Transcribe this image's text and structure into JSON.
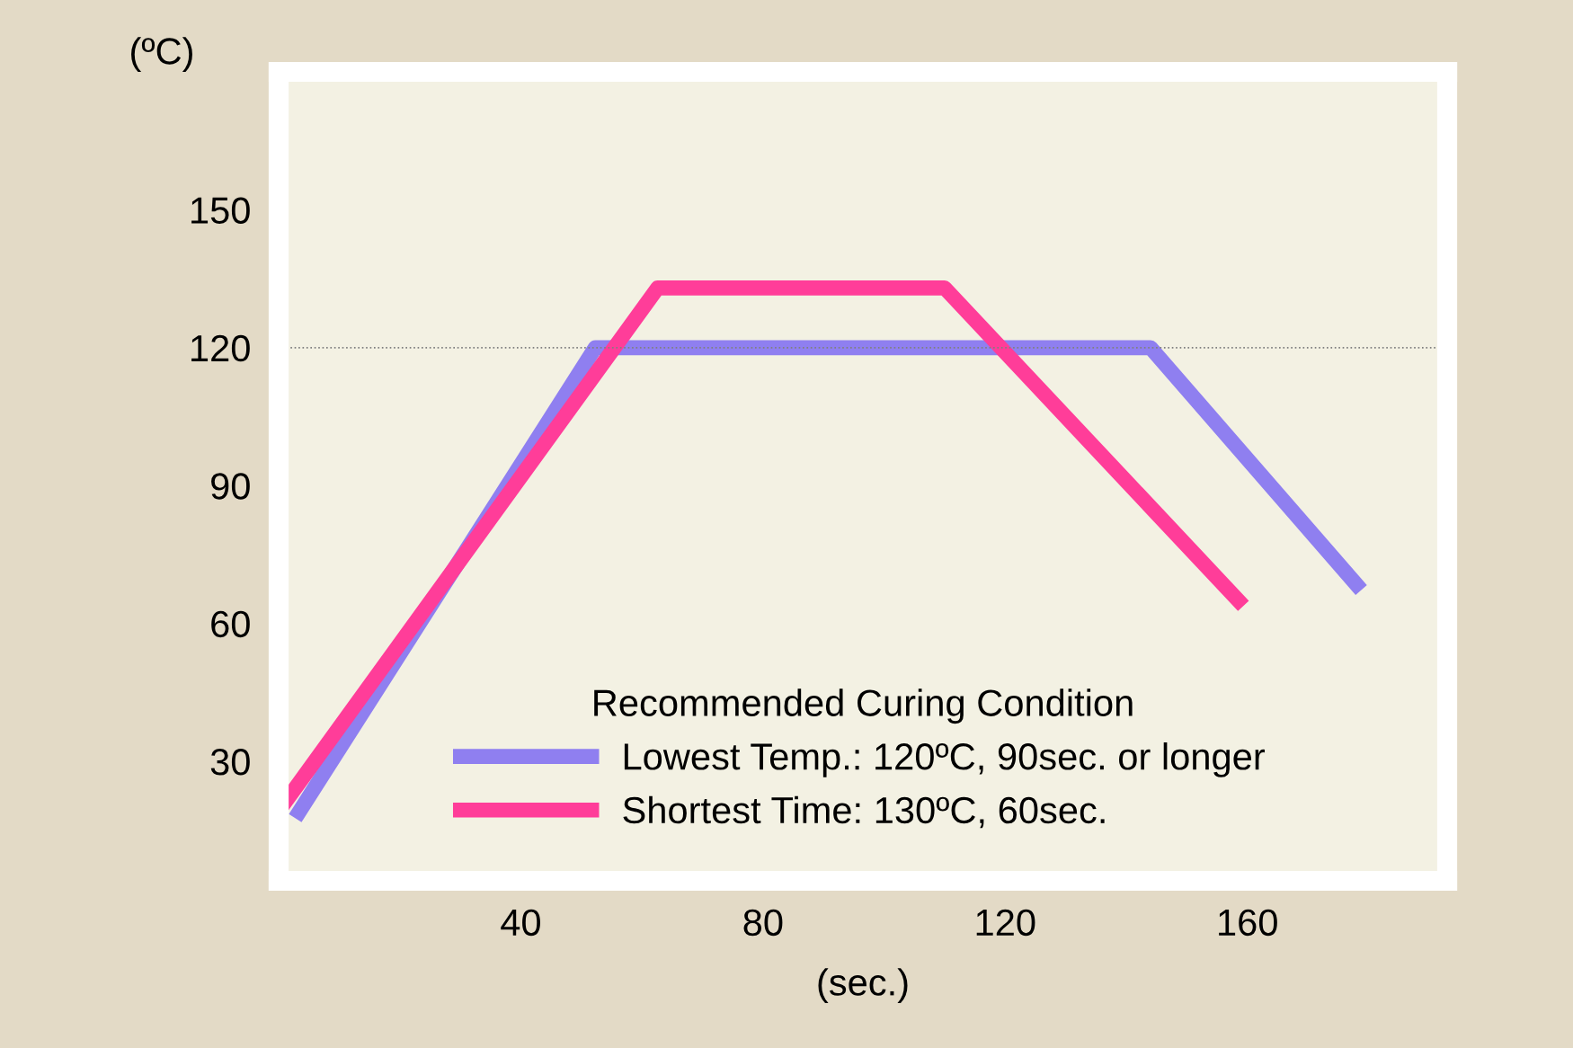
{
  "chart_data": {
    "type": "line",
    "xlabel": "(sec.)",
    "ylabel": "(ºC)",
    "legend_title": "Recommended Curing Condition",
    "legend": "bottom",
    "xlim": [
      0,
      193
    ],
    "ylim": [
      4,
      180
    ],
    "xticks": [
      40,
      80,
      120,
      160
    ],
    "yticks": [
      30,
      60,
      90,
      120,
      150
    ],
    "grid": false,
    "marker": "none",
    "line_style": "solid",
    "ref_lines": [
      {
        "axis": "y",
        "value": 120,
        "color": "#808080",
        "line_style": "dotted"
      }
    ],
    "series": [
      {
        "name": "Lowest Temp.: 120ºC, 90sec. or longer",
        "color": "#8f7ff0",
        "x": [
          3.4,
          52.3,
          144,
          178
        ],
        "values": [
          19,
          120,
          120,
          68.5
        ]
      },
      {
        "name": "Shortest Time: 130ºC, 60sec.",
        "color": "#ff3d99",
        "x": [
          1,
          62.6,
          110,
          158.5
        ],
        "values": [
          21,
          133,
          133,
          65
        ]
      }
    ]
  }
}
